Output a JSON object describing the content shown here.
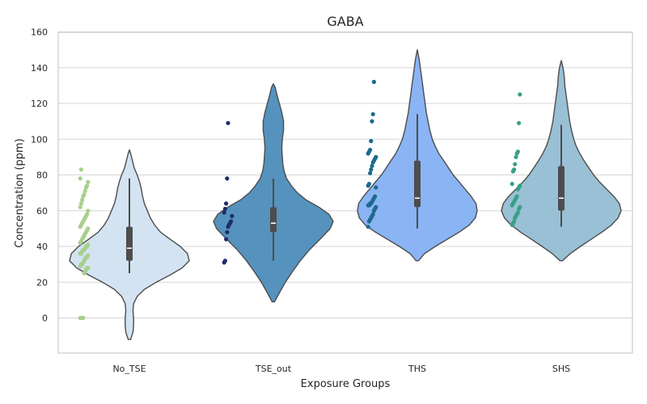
{
  "chart_data": {
    "type": "violin",
    "title": "GABA",
    "xlabel": "Exposure Groups",
    "ylabel": "Concentration (ppm)",
    "ylim": [
      -20,
      160
    ],
    "yticks": [
      0,
      20,
      40,
      60,
      80,
      100,
      120,
      140,
      160
    ],
    "grid": true,
    "categories": [
      "No_TSE",
      "TSE_out",
      "THS",
      "SHS"
    ],
    "groups": [
      {
        "name": "No_TSE",
        "violin_color": "#d3e3f2",
        "point_color": "#a8d08d",
        "extent": [
          -12,
          94
        ],
        "box": {
          "q1": 32,
          "median": 39,
          "q3": 51,
          "whisker_low": 25,
          "whisker_high": 78
        },
        "density": [
          [
            -12,
            0.02
          ],
          [
            -8,
            0.06
          ],
          [
            -4,
            0.07
          ],
          [
            0,
            0.07
          ],
          [
            4,
            0.06
          ],
          [
            8,
            0.07
          ],
          [
            12,
            0.13
          ],
          [
            16,
            0.25
          ],
          [
            20,
            0.45
          ],
          [
            24,
            0.68
          ],
          [
            28,
            0.88
          ],
          [
            32,
            1.0
          ],
          [
            36,
            0.97
          ],
          [
            40,
            0.85
          ],
          [
            44,
            0.68
          ],
          [
            48,
            0.52
          ],
          [
            52,
            0.42
          ],
          [
            56,
            0.35
          ],
          [
            60,
            0.3
          ],
          [
            64,
            0.25
          ],
          [
            68,
            0.22
          ],
          [
            72,
            0.2
          ],
          [
            76,
            0.17
          ],
          [
            80,
            0.13
          ],
          [
            84,
            0.08
          ],
          [
            88,
            0.05
          ],
          [
            92,
            0.02
          ],
          [
            94,
            0.0
          ]
        ],
        "points": [
          0,
          0,
          0,
          0,
          25,
          26,
          27,
          28,
          28,
          29,
          30,
          30,
          31,
          32,
          33,
          34,
          34,
          35,
          36,
          36,
          37,
          38,
          38,
          39,
          40,
          40,
          41,
          42,
          43,
          44,
          45,
          46,
          47,
          48,
          49,
          50,
          51,
          52,
          53,
          54,
          55,
          56,
          57,
          58,
          60,
          62,
          64,
          66,
          68,
          69,
          71,
          73,
          74,
          76,
          78,
          83
        ]
      },
      {
        "name": "TSE_out",
        "violin_color": "#5592bd",
        "point_color": "#1f2d6b",
        "extent": [
          9,
          131
        ],
        "box": {
          "q1": 48,
          "median": 53,
          "q3": 62,
          "whisker_low": 32,
          "whisker_high": 78
        },
        "density": [
          [
            9,
            0.02
          ],
          [
            14,
            0.1
          ],
          [
            20,
            0.2
          ],
          [
            26,
            0.32
          ],
          [
            32,
            0.45
          ],
          [
            38,
            0.6
          ],
          [
            44,
            0.78
          ],
          [
            50,
            0.95
          ],
          [
            54,
            1.0
          ],
          [
            58,
            0.93
          ],
          [
            62,
            0.76
          ],
          [
            66,
            0.55
          ],
          [
            70,
            0.4
          ],
          [
            74,
            0.3
          ],
          [
            78,
            0.22
          ],
          [
            82,
            0.18
          ],
          [
            86,
            0.16
          ],
          [
            90,
            0.15
          ],
          [
            95,
            0.14
          ],
          [
            100,
            0.15
          ],
          [
            105,
            0.17
          ],
          [
            110,
            0.17
          ],
          [
            115,
            0.14
          ],
          [
            120,
            0.1
          ],
          [
            125,
            0.06
          ],
          [
            129,
            0.03
          ],
          [
            131,
            0.0
          ]
        ],
        "points": [
          31,
          32,
          44,
          48,
          51,
          52,
          53,
          54,
          57,
          59,
          61,
          64,
          78,
          109
        ]
      },
      {
        "name": "THS",
        "violin_color": "#8ab4f4",
        "point_color": "#1d6a8e",
        "extent": [
          32,
          150
        ],
        "box": {
          "q1": 62,
          "median": 67,
          "q3": 88,
          "whisker_low": 50,
          "whisker_high": 114
        },
        "density": [
          [
            32,
            0.02
          ],
          [
            36,
            0.12
          ],
          [
            40,
            0.3
          ],
          [
            44,
            0.5
          ],
          [
            48,
            0.7
          ],
          [
            52,
            0.87
          ],
          [
            56,
            0.97
          ],
          [
            60,
            1.0
          ],
          [
            64,
            0.98
          ],
          [
            68,
            0.9
          ],
          [
            72,
            0.8
          ],
          [
            76,
            0.7
          ],
          [
            80,
            0.6
          ],
          [
            84,
            0.52
          ],
          [
            88,
            0.44
          ],
          [
            92,
            0.36
          ],
          [
            96,
            0.3
          ],
          [
            100,
            0.25
          ],
          [
            105,
            0.21
          ],
          [
            110,
            0.18
          ],
          [
            115,
            0.15
          ],
          [
            120,
            0.13
          ],
          [
            125,
            0.11
          ],
          [
            130,
            0.09
          ],
          [
            135,
            0.07
          ],
          [
            140,
            0.05
          ],
          [
            145,
            0.03
          ],
          [
            150,
            0.0
          ]
        ],
        "points": [
          51,
          54,
          55,
          56,
          57,
          58,
          60,
          61,
          62,
          63,
          63,
          64,
          64,
          65,
          66,
          67,
          68,
          73,
          74,
          75,
          81,
          83,
          85,
          87,
          88,
          89,
          90,
          92,
          93,
          94,
          99,
          110,
          114,
          132
        ]
      },
      {
        "name": "SHS",
        "violin_color": "#9ac0d6",
        "point_color": "#3aa088",
        "extent": [
          32,
          144
        ],
        "box": {
          "q1": 60,
          "median": 67,
          "q3": 85,
          "whisker_low": 51,
          "whisker_high": 108
        },
        "density": [
          [
            32,
            0.02
          ],
          [
            36,
            0.15
          ],
          [
            40,
            0.32
          ],
          [
            44,
            0.5
          ],
          [
            48,
            0.68
          ],
          [
            52,
            0.84
          ],
          [
            56,
            0.95
          ],
          [
            60,
            1.0
          ],
          [
            64,
            0.97
          ],
          [
            68,
            0.88
          ],
          [
            72,
            0.76
          ],
          [
            76,
            0.64
          ],
          [
            80,
            0.54
          ],
          [
            84,
            0.46
          ],
          [
            88,
            0.38
          ],
          [
            92,
            0.31
          ],
          [
            96,
            0.25
          ],
          [
            100,
            0.21
          ],
          [
            105,
            0.17
          ],
          [
            110,
            0.14
          ],
          [
            115,
            0.12
          ],
          [
            120,
            0.1
          ],
          [
            125,
            0.08
          ],
          [
            130,
            0.06
          ],
          [
            135,
            0.05
          ],
          [
            140,
            0.03
          ],
          [
            144,
            0.0
          ]
        ],
        "points": [
          52,
          53,
          54,
          56,
          57,
          58,
          59,
          61,
          62,
          63,
          64,
          65,
          66,
          67,
          68,
          72,
          73,
          74,
          75,
          82,
          83,
          86,
          90,
          92,
          93,
          109,
          125
        ]
      }
    ]
  }
}
